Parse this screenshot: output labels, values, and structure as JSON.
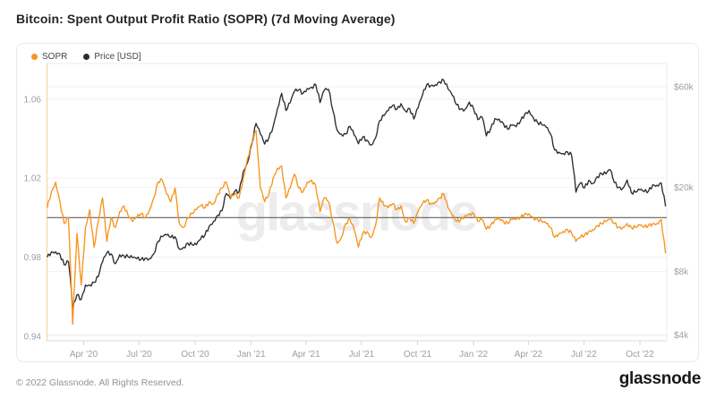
{
  "header": {
    "title": "Bitcoin: Spent Output Profit Ratio (SOPR) (7d Moving Average)"
  },
  "legend": {
    "items": [
      {
        "label": "SOPR",
        "color": "#f7941d"
      },
      {
        "label": "Price [USD]",
        "color": "#2b2d30"
      }
    ]
  },
  "watermark": {
    "text": "glassnode"
  },
  "footer": {
    "copyright": "© 2022 Glassnode. All Rights Reserved.",
    "brand": "glassnode"
  },
  "colors": {
    "sopr_orange": "#f7941d",
    "price_black": "#2b2d30",
    "baseline_gray": "#616161",
    "grid": "#f1f1f3",
    "axis_text": "#9a9fa6",
    "plot_border": "#ebebed",
    "tick": "#d8d8dc",
    "watermark_gray": "#e4e4e6"
  },
  "chart_data": {
    "type": "line",
    "title": "Bitcoin: Spent Output Profit Ratio (SOPR) (7d Moving Average)",
    "x_start_date": "2020-02-01",
    "x_end_date": "2022-11-12",
    "x_step_days": 7,
    "x_ticks": [
      {
        "label": "Apr '20",
        "day": 60
      },
      {
        "label": "Jul '20",
        "day": 151
      },
      {
        "label": "Oct '20",
        "day": 243
      },
      {
        "label": "Jan '21",
        "day": 335
      },
      {
        "label": "Apr '21",
        "day": 425
      },
      {
        "label": "Jul '21",
        "day": 516
      },
      {
        "label": "Oct '21",
        "day": 608
      },
      {
        "label": "Jan '22",
        "day": 700
      },
      {
        "label": "Apr '22",
        "day": 790
      },
      {
        "label": "Jul '22",
        "day": 881
      },
      {
        "label": "Oct '22",
        "day": 973
      }
    ],
    "left_axis": {
      "name": "SOPR",
      "scale": "linear",
      "baseline": 1.0,
      "ticks": [
        {
          "v": 1.06,
          "label": "1.06"
        },
        {
          "v": 1.02,
          "label": "1.02"
        },
        {
          "v": 0.98,
          "label": "0.98"
        },
        {
          "v": 0.94,
          "label": "0.94"
        }
      ]
    },
    "right_axis": {
      "name": "Price [USD]",
      "scale": "log",
      "ticks": [
        {
          "v": 60000,
          "label": "$60k"
        },
        {
          "v": 20000,
          "label": "$20k"
        },
        {
          "v": 8000,
          "label": "$8k"
        },
        {
          "v": 4000,
          "label": "$4k"
        }
      ]
    },
    "legend_position": "top-left",
    "grid": true,
    "series": [
      {
        "name": "SOPR",
        "axis": "left",
        "color": "#f7941d",
        "values": [
          1.005,
          1.013,
          1.018,
          1.008,
          0.997,
          1.0,
          0.946,
          0.992,
          0.966,
          0.995,
          1.004,
          0.985,
          0.998,
          1.01,
          0.988,
          1.0,
          0.995,
          1.003,
          1.006,
          1.001,
          0.998,
          1.0,
          1.002,
          1.0,
          1.004,
          1.01,
          1.018,
          1.019,
          1.012,
          1.008,
          1.015,
          0.997,
          0.995,
          1.0,
          1.002,
          1.004,
          1.006,
          1.005,
          1.008,
          1.007,
          1.012,
          1.015,
          1.018,
          1.01,
          1.012,
          1.01,
          1.02,
          1.03,
          1.038,
          1.044,
          1.015,
          1.008,
          1.012,
          1.02,
          1.025,
          1.026,
          1.01,
          1.015,
          1.022,
          1.015,
          1.013,
          1.018,
          1.019,
          1.016,
          1.003,
          1.01,
          1.008,
          0.998,
          0.987,
          0.99,
          0.997,
          0.999,
          0.994,
          0.985,
          0.992,
          0.993,
          0.99,
          0.996,
          1.01,
          1.006,
          1.005,
          1.007,
          1.004,
          1.006,
          0.998,
          1.0,
          0.997,
          1.003,
          1.007,
          1.009,
          1.007,
          1.008,
          1.01,
          1.012,
          1.005,
          1.001,
          0.998,
          0.999,
          1.001,
          1.002,
          1.002,
          0.998,
          0.999,
          0.994,
          0.996,
          0.999,
          1.0,
          0.998,
          0.997,
          0.999,
          0.999,
          1.0,
          1.002,
          1.002,
          1.0,
          0.999,
          0.998,
          0.997,
          0.995,
          0.99,
          0.992,
          0.993,
          0.994,
          0.992,
          0.988,
          0.99,
          0.991,
          0.993,
          0.994,
          0.996,
          0.997,
          0.998,
          0.999,
          0.997,
          0.995,
          0.995,
          0.997,
          0.995,
          0.995,
          0.996,
          0.995,
          0.996,
          0.997,
          0.997,
          0.999,
          0.982
        ]
      },
      {
        "name": "Price [USD]",
        "axis": "right",
        "color": "#2b2d30",
        "values": [
          9350,
          9900,
          9920,
          9650,
          8600,
          8900,
          5300,
          6200,
          5900,
          6900,
          6900,
          7100,
          7550,
          8900,
          9800,
          9700,
          8700,
          9600,
          9500,
          9400,
          9300,
          9200,
          9100,
          9250,
          9200,
          9700,
          11100,
          11700,
          11900,
          11600,
          11700,
          10200,
          10400,
          10900,
          10700,
          10700,
          11400,
          11900,
          13100,
          13800,
          14800,
          15500,
          18700,
          17700,
          19200,
          19100,
          23800,
          26300,
          32200,
          40200,
          35800,
          32100,
          34300,
          38900,
          47200,
          55900,
          46300,
          50400,
          57100,
          58100,
          55800,
          58900,
          59700,
          61500,
          50500,
          57800,
          58300,
          46400,
          37300,
          35700,
          35800,
          39000,
          35500,
          32200,
          34700,
          33500,
          31800,
          34300,
          41500,
          43800,
          46300,
          48900,
          47000,
          49900,
          46100,
          47300,
          42200,
          47700,
          54700,
          61300,
          60900,
          61300,
          63300,
          64400,
          58600,
          54700,
          49300,
          47000,
          46900,
          50800,
          47300,
          41900,
          43100,
          35100,
          37900,
          42400,
          42200,
          40100,
          37700,
          39400,
          38800,
          41300,
          44500,
          46300,
          42800,
          40600,
          39700,
          38600,
          36000,
          30100,
          29400,
          29000,
          29500,
          28400,
          19000,
          21000,
          19900,
          21600,
          20900,
          22500,
          23300,
          23200,
          24300,
          21100,
          20000,
          19800,
          21700,
          18900,
          19000,
          19500,
          19100,
          19200,
          20600,
          20500,
          21000,
          16300
        ]
      }
    ]
  }
}
